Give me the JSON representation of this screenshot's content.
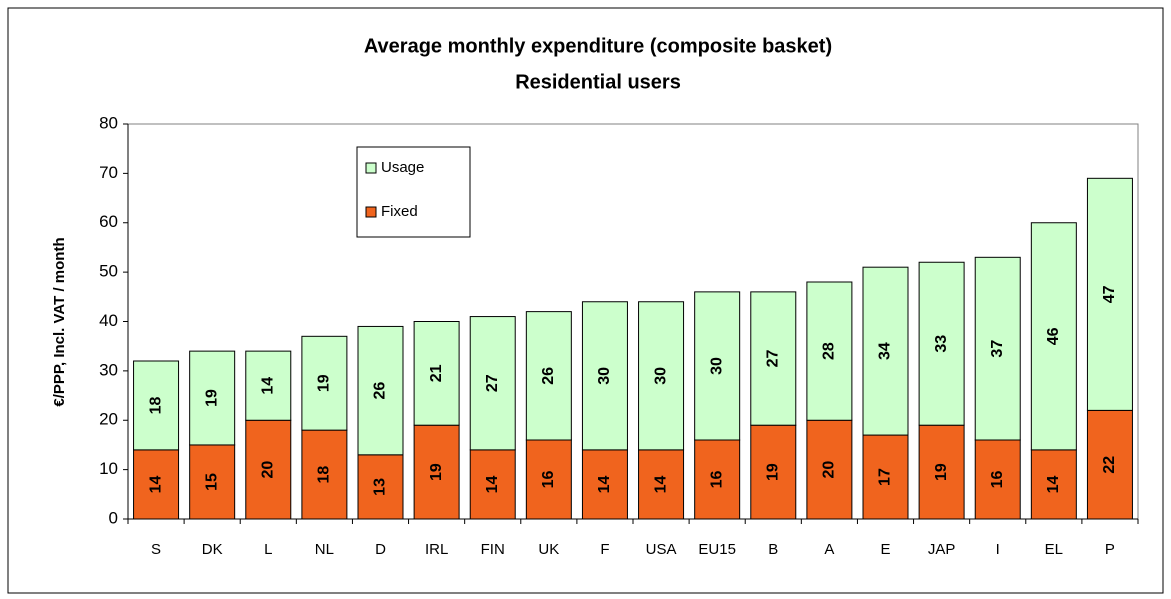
{
  "chart_data": {
    "type": "stacked_bar",
    "title": "Average monthly expenditure (composite basket)",
    "subtitle": "Residential users",
    "y_label": "€/PPP, Incl. VAT / month",
    "categories": [
      "S",
      "DK",
      "L",
      "NL",
      "D",
      "IRL",
      "FIN",
      "UK",
      "F",
      "USA",
      "EU15",
      "B",
      "A",
      "E",
      "JAP",
      "I",
      "EL",
      "P"
    ],
    "series": [
      {
        "name": "Fixed",
        "color": "#f0641e",
        "values": [
          14,
          15,
          20,
          18,
          13,
          19,
          14,
          16,
          14,
          14,
          16,
          19,
          20,
          17,
          19,
          16,
          14,
          22
        ]
      },
      {
        "name": "Usage",
        "color": "#ccffcc",
        "values": [
          18,
          19,
          14,
          19,
          26,
          21,
          27,
          26,
          30,
          30,
          30,
          27,
          28,
          34,
          33,
          37,
          46,
          47
        ]
      }
    ],
    "ylim": [
      0,
      80
    ],
    "yticks": [
      0,
      10,
      20,
      30,
      40,
      50,
      60,
      70,
      80
    ],
    "grid": false
  }
}
